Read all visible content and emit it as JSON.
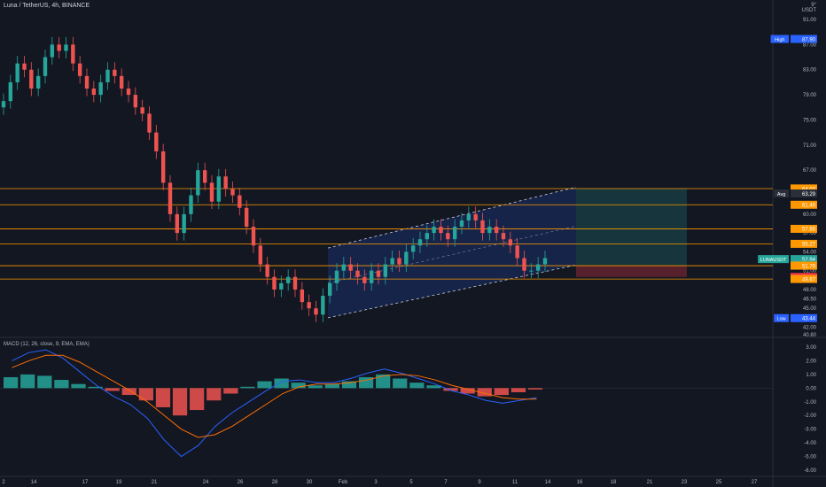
{
  "header": {
    "title": "Luna / TetherUS, 4h, BINANCE"
  },
  "price_scale": {
    "currency_top": "9°",
    "currency": "USDT",
    "ticks": [
      "91.00",
      "87.00",
      "83.00",
      "79.00",
      "75.00",
      "71.00",
      "67.00",
      "63.00",
      "60.00",
      "57.00",
      "54.00",
      "51.00",
      "48.00",
      "46.50",
      "45.00",
      "42.00",
      "40.80"
    ]
  },
  "price_badges": [
    {
      "text": "High",
      "value": "87.90",
      "color": "#2962ff"
    },
    {
      "text": "",
      "value": "64.09",
      "color": "#ff9800"
    },
    {
      "text": "",
      "value": "64.07",
      "color": "#ff9800"
    },
    {
      "text": "Avg",
      "value": "63.29",
      "color": "#2a2e39"
    },
    {
      "text": "",
      "value": "61.49",
      "color": "#ff9800"
    },
    {
      "text": "",
      "value": "57.66",
      "color": "#ff9800"
    },
    {
      "text": "",
      "value": "55.27",
      "color": "#ff9800"
    },
    {
      "text": "LUNAUSDT",
      "value": "52.84",
      "color": "#26a69a"
    },
    {
      "text": "",
      "value": "03:24:29",
      "color": "#26a69a"
    },
    {
      "text": "",
      "value": "51.81",
      "color": "#ff9800"
    },
    {
      "text": "",
      "value": "51.79",
      "color": "#ff9800"
    },
    {
      "text": "",
      "value": "50.00",
      "color": "#f23645"
    },
    {
      "text": "",
      "value": "49.67",
      "color": "#ff9800"
    },
    {
      "text": "Low",
      "value": "43.44",
      "color": "#2962ff"
    }
  ],
  "macd": {
    "title": "MACD (12, 26, close, 9, EMA, EMA)",
    "ticks": [
      "3.00",
      "2.00",
      "1.00",
      "0.00",
      "-1.00",
      "-2.00",
      "-3.00",
      "-4.00",
      "-5.00",
      "-6.00"
    ]
  },
  "time_axis": [
    "2",
    "14",
    "17",
    "19",
    "21",
    "24",
    "26",
    "28",
    "30",
    "Feb",
    "3",
    "5",
    "7",
    "9",
    "11",
    "14",
    "16",
    "18",
    "21",
    "23",
    "25",
    "27"
  ],
  "colors": {
    "up": "#26a69a",
    "down": "#ef5350",
    "level": "#ff9800",
    "channel_fill": "#2962ff",
    "target": "#26a69a",
    "stop": "#f23645",
    "macd_line": "#2962ff",
    "signal_line": "#ff6d00"
  },
  "chart_data": {
    "type": "candlestick",
    "symbol": "LUNAUSDT",
    "interval": "4h",
    "ylim": [
      40.8,
      91.0
    ],
    "horizontal_levels": [
      64.07,
      61.49,
      57.66,
      55.27,
      51.79,
      49.67
    ],
    "position": {
      "entry": 51.81,
      "target": 64.09,
      "stop": 50.0
    },
    "high": 87.9,
    "low": 43.44,
    "avg": 63.29,
    "last": 52.84,
    "approx_closes": [
      78,
      81,
      84,
      83,
      80,
      82,
      85,
      87,
      86,
      87,
      84,
      82,
      80,
      79,
      81,
      83,
      82,
      80,
      79,
      77,
      76,
      73,
      70,
      65,
      60,
      57,
      60,
      63,
      67,
      65,
      62,
      66,
      64,
      63,
      61,
      58,
      55,
      52,
      50,
      48,
      49,
      50,
      48,
      46,
      45,
      44,
      47,
      49,
      51,
      52,
      51,
      50,
      49,
      51,
      50,
      52,
      53,
      52,
      54,
      55,
      56,
      57,
      58,
      57,
      56,
      58,
      59,
      60,
      59,
      57,
      58,
      57,
      56,
      55,
      53,
      51,
      51,
      52,
      53
    ],
    "macd_hist_approx": [
      0.8,
      1.0,
      0.9,
      0.6,
      0.3,
      0.1,
      -0.2,
      -0.5,
      -0.9,
      -1.4,
      -2.0,
      -1.6,
      -0.9,
      -0.4,
      0.1,
      0.5,
      0.7,
      0.4,
      0.2,
      0.3,
      0.5,
      0.8,
      1.0,
      0.7,
      0.4,
      0.2,
      -0.2,
      -0.4,
      -0.6,
      -0.5,
      -0.3,
      -0.1
    ]
  }
}
